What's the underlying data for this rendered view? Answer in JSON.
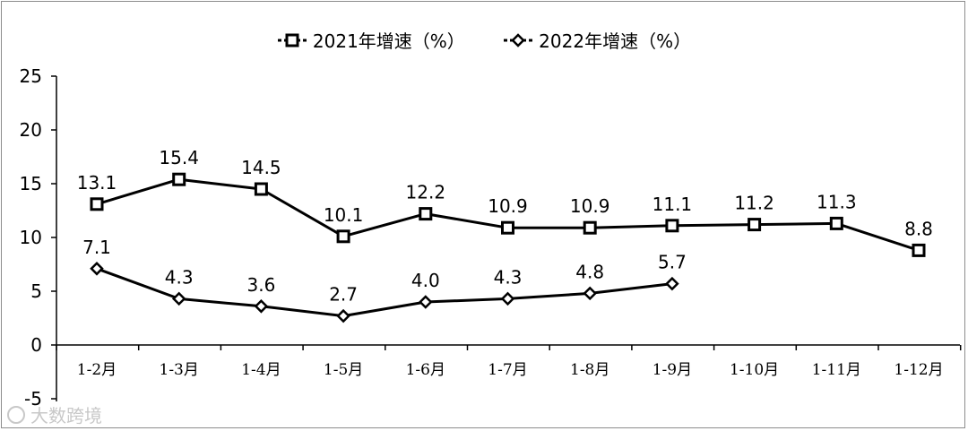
{
  "chart_data": {
    "type": "line",
    "categories": [
      "1-2月",
      "1-3月",
      "1-4月",
      "1-5月",
      "1-6月",
      "1-7月",
      "1-8月",
      "1-9月",
      "1-10月",
      "1-11月",
      "1-12月"
    ],
    "series": [
      {
        "name": "2021年增速（%）",
        "marker": "square",
        "values": [
          13.1,
          15.4,
          14.5,
          10.1,
          12.2,
          10.9,
          10.9,
          11.1,
          11.2,
          11.3,
          8.8
        ],
        "labels": [
          "13.1",
          "15.4",
          "14.5",
          "10.1",
          "12.2",
          "10.9",
          "10.9",
          "11.1",
          "11.2",
          "11.3",
          "8.8"
        ]
      },
      {
        "name": "2022年增速（%）",
        "marker": "diamond",
        "values": [
          7.1,
          4.3,
          3.6,
          2.7,
          4.0,
          4.3,
          4.8,
          5.7,
          null,
          null,
          null
        ],
        "labels": [
          "7.1",
          "4.3",
          "3.6",
          "2.7",
          "4.0",
          "4.3",
          "4.8",
          "5.7",
          null,
          null,
          null
        ]
      }
    ],
    "yticks": [
      25,
      20,
      15,
      10,
      5,
      0,
      -5
    ],
    "ylim": [
      -5,
      25
    ],
    "legend": "top-center",
    "line_color": "#000000"
  },
  "watermark": "大数跨境"
}
